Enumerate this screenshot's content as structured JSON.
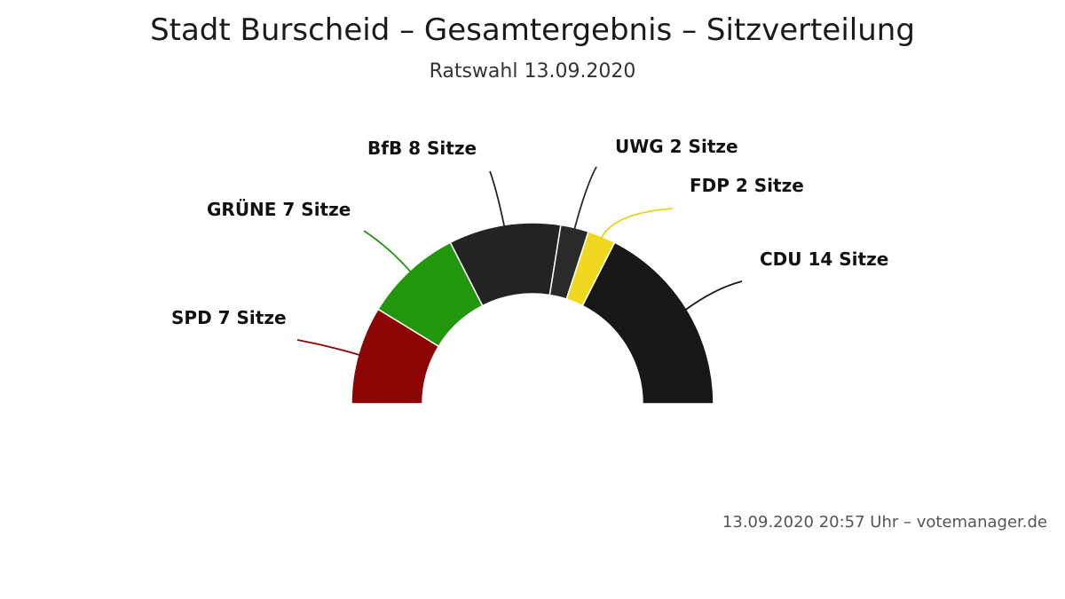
{
  "chart_data": {
    "type": "pie",
    "variant": "parliament-semicircle",
    "title": "Stadt Burscheid – Gesamtergebnis – Sitzverteilung",
    "subtitle": "Ratswahl 13.09.2020",
    "unit_label": "Sitze",
    "slices": [
      {
        "name": "SPD",
        "value": 7,
        "label": "SPD 7 Sitze",
        "color": "#8b0505"
      },
      {
        "name": "GRÜNE",
        "value": 7,
        "label": "GRÜNE 7 Sitze",
        "color": "#22960c"
      },
      {
        "name": "BfB",
        "value": 8,
        "label": "BfB 8 Sitze",
        "color": "#232323"
      },
      {
        "name": "UWG",
        "value": 2,
        "label": "UWG 2 Sitze",
        "color": "#2a2a2a"
      },
      {
        "name": "FDP",
        "value": 2,
        "label": "FDP 2 Sitze",
        "color": "#f0d820"
      },
      {
        "name": "CDU",
        "value": 14,
        "label": "CDU 14 Sitze",
        "color": "#171717"
      }
    ],
    "legend": "none"
  },
  "footer": {
    "credit": "13.09.2020 20:57 Uhr – votemanager.de"
  }
}
